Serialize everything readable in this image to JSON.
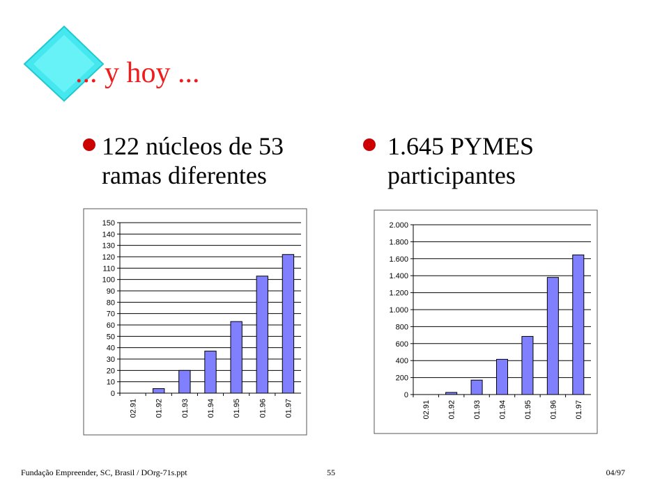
{
  "title": "... y hoy ...",
  "bullets": [
    {
      "lines": [
        "122 núcleos de 53",
        "ramas diferentes"
      ]
    },
    {
      "lines": [
        "1.645 PYMES",
        "participantes"
      ]
    }
  ],
  "footer": {
    "left": "Fundação Empreender, SC, Brasil / DOrg-71s.ppt",
    "center": "55",
    "right": "04/97"
  },
  "chart_data": [
    {
      "type": "bar",
      "categories": [
        "02.91",
        "01.92",
        "01.93",
        "01.94",
        "01.95",
        "01.96",
        "01.97"
      ],
      "values": [
        0,
        4,
        20,
        37,
        63,
        103,
        122
      ],
      "color": "#8080ff",
      "ylim": [
        0,
        150
      ],
      "yticks": [
        0,
        10,
        20,
        30,
        40,
        50,
        60,
        70,
        80,
        90,
        100,
        110,
        120,
        130,
        140,
        150
      ],
      "grid": true
    },
    {
      "type": "bar",
      "categories": [
        "02.91",
        "01.92",
        "01.93",
        "01.94",
        "01.95",
        "01.96",
        "01.97"
      ],
      "values": [
        0,
        25,
        170,
        415,
        685,
        1380,
        1645
      ],
      "color": "#8080ff",
      "ylim": [
        0,
        2000
      ],
      "yticks": [
        0,
        200,
        400,
        600,
        800,
        {
          "value": 1000,
          "label": "1.000"
        },
        {
          "value": 1200,
          "label": "1.200"
        },
        {
          "value": 1400,
          "label": "1.400"
        },
        {
          "value": 1600,
          "label": "1.600"
        },
        {
          "value": 1800,
          "label": "1.800"
        },
        {
          "value": 2000,
          "label": "2.000"
        }
      ],
      "grid": true
    }
  ]
}
